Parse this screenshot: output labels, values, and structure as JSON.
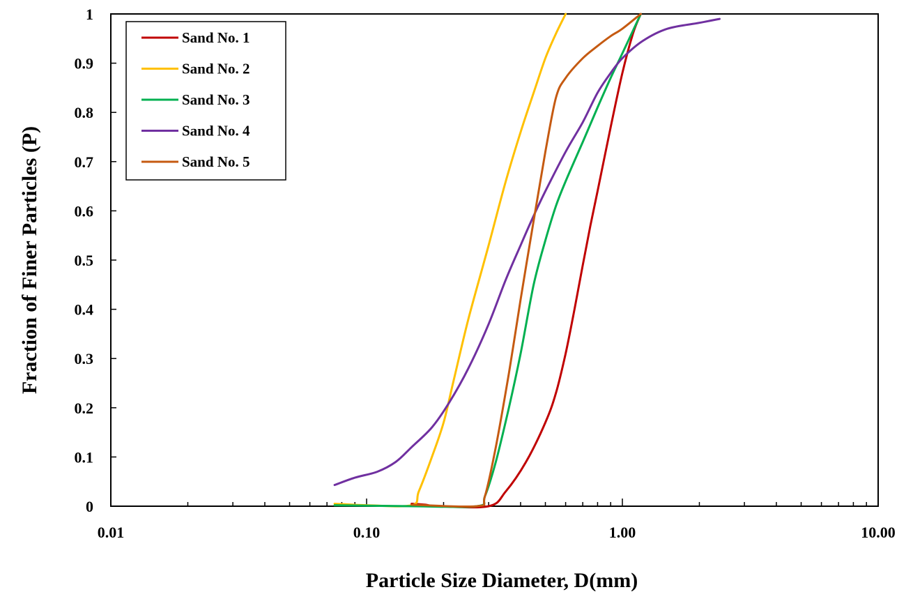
{
  "chart_data": {
    "type": "line",
    "title": "",
    "xlabel": "Particle Size Diameter, D(mm)",
    "ylabel": "Fraction of Finer Particles (P)",
    "xscale": "log",
    "xlim": [
      0.01,
      10.0
    ],
    "ylim": [
      0,
      1
    ],
    "xticks": [
      0.01,
      0.1,
      1.0,
      10.0
    ],
    "xtick_labels": [
      "0.01",
      "0.10",
      "1.00",
      "10.00"
    ],
    "yticks": [
      0,
      0.1,
      0.2,
      0.3,
      0.4,
      0.5,
      0.6,
      0.7,
      0.8,
      0.9,
      1
    ],
    "ytick_labels": [
      "0",
      "0.1",
      "0.2",
      "0.3",
      "0.4",
      "0.5",
      "0.6",
      "0.7",
      "0.8",
      "0.9",
      "1"
    ],
    "grid": false,
    "legend_position": "top-left",
    "series": [
      {
        "name": "Sand No. 1",
        "color": "#C00000",
        "points": [
          [
            0.15,
            0.005
          ],
          [
            0.17,
            0.003
          ],
          [
            0.19,
            0.0
          ],
          [
            0.3,
            0.0
          ],
          [
            0.35,
            0.03
          ],
          [
            0.42,
            0.09
          ],
          [
            0.5,
            0.17
          ],
          [
            0.55,
            0.23
          ],
          [
            0.6,
            0.31
          ],
          [
            0.65,
            0.4
          ],
          [
            0.7,
            0.49
          ],
          [
            0.75,
            0.57
          ],
          [
            0.8,
            0.64
          ],
          [
            0.9,
            0.77
          ],
          [
            1.0,
            0.88
          ],
          [
            1.1,
            0.96
          ],
          [
            1.18,
            1.0
          ]
        ]
      },
      {
        "name": "Sand No. 2",
        "color": "#FFC000",
        "points": [
          [
            0.075,
            0.005
          ],
          [
            0.1,
            0.002
          ],
          [
            0.15,
            0.002
          ],
          [
            0.16,
            0.03
          ],
          [
            0.18,
            0.1
          ],
          [
            0.2,
            0.17
          ],
          [
            0.22,
            0.26
          ],
          [
            0.25,
            0.38
          ],
          [
            0.3,
            0.53
          ],
          [
            0.35,
            0.66
          ],
          [
            0.4,
            0.76
          ],
          [
            0.45,
            0.84
          ],
          [
            0.5,
            0.91
          ],
          [
            0.55,
            0.96
          ],
          [
            0.6,
            1.0
          ]
        ]
      },
      {
        "name": "Sand No. 3",
        "color": "#00B050",
        "points": [
          [
            0.075,
            0.002
          ],
          [
            0.15,
            0.0
          ],
          [
            0.27,
            0.0
          ],
          [
            0.29,
            0.02
          ],
          [
            0.32,
            0.09
          ],
          [
            0.36,
            0.2
          ],
          [
            0.4,
            0.31
          ],
          [
            0.45,
            0.45
          ],
          [
            0.5,
            0.54
          ],
          [
            0.55,
            0.61
          ],
          [
            0.6,
            0.66
          ],
          [
            0.7,
            0.74
          ],
          [
            0.8,
            0.81
          ],
          [
            0.9,
            0.87
          ],
          [
            1.0,
            0.92
          ],
          [
            1.18,
            1.0
          ]
        ]
      },
      {
        "name": "Sand No. 4",
        "color": "#7030A0",
        "points": [
          [
            0.075,
            0.043
          ],
          [
            0.09,
            0.058
          ],
          [
            0.11,
            0.07
          ],
          [
            0.13,
            0.09
          ],
          [
            0.15,
            0.12
          ],
          [
            0.18,
            0.16
          ],
          [
            0.21,
            0.21
          ],
          [
            0.25,
            0.28
          ],
          [
            0.3,
            0.37
          ],
          [
            0.35,
            0.46
          ],
          [
            0.4,
            0.53
          ],
          [
            0.45,
            0.59
          ],
          [
            0.5,
            0.64
          ],
          [
            0.6,
            0.72
          ],
          [
            0.7,
            0.78
          ],
          [
            0.8,
            0.84
          ],
          [
            0.9,
            0.88
          ],
          [
            1.0,
            0.91
          ],
          [
            1.2,
            0.945
          ],
          [
            1.5,
            0.97
          ],
          [
            2.0,
            0.982
          ],
          [
            2.4,
            0.99
          ]
        ]
      },
      {
        "name": "Sand No. 5",
        "color": "#C55A11",
        "points": [
          [
            0.15,
            0.003
          ],
          [
            0.27,
            0.0
          ],
          [
            0.29,
            0.02
          ],
          [
            0.32,
            0.12
          ],
          [
            0.36,
            0.27
          ],
          [
            0.4,
            0.42
          ],
          [
            0.45,
            0.58
          ],
          [
            0.5,
            0.72
          ],
          [
            0.55,
            0.83
          ],
          [
            0.6,
            0.87
          ],
          [
            0.7,
            0.91
          ],
          [
            0.8,
            0.935
          ],
          [
            0.9,
            0.955
          ],
          [
            1.0,
            0.97
          ],
          [
            1.18,
            1.0
          ]
        ]
      }
    ]
  }
}
